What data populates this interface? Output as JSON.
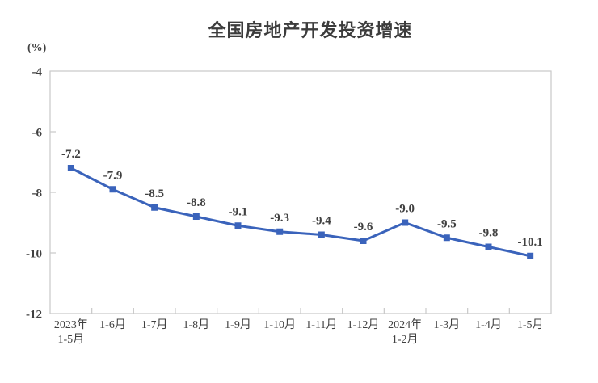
{
  "chart_data": {
    "type": "line",
    "title": "全国房地产开发投资增速",
    "ylabel": "(%)",
    "categories": [
      "2023年\n1-5月",
      "1-6月",
      "1-7月",
      "1-8月",
      "1-9月",
      "1-10月",
      "1-11月",
      "1-12月",
      "2024年\n1-2月",
      "1-3月",
      "1-4月",
      "1-5月"
    ],
    "values": [
      -7.2,
      -7.9,
      -8.5,
      -8.8,
      -9.1,
      -9.3,
      -9.4,
      -9.6,
      -9.0,
      -9.5,
      -9.8,
      -10.1
    ],
    "data_labels": [
      "-7.2",
      "-7.9",
      "-8.5",
      "-8.8",
      "-9.1",
      "-9.3",
      "-9.4",
      "-9.6",
      "-9.0",
      "-9.5",
      "-9.8",
      "-10.1"
    ],
    "ylim": [
      -12,
      -4
    ],
    "yticks": [
      -4,
      -6,
      -8,
      -10,
      -12
    ],
    "grid": false,
    "legend": "none",
    "marker": "square"
  },
  "colors": {
    "line": "#3a63bb",
    "marker": "#3a63bb",
    "axis": "#c9c9c9",
    "text": "#404040",
    "title_text": "#3c3c3c",
    "background": "#ffffff"
  }
}
